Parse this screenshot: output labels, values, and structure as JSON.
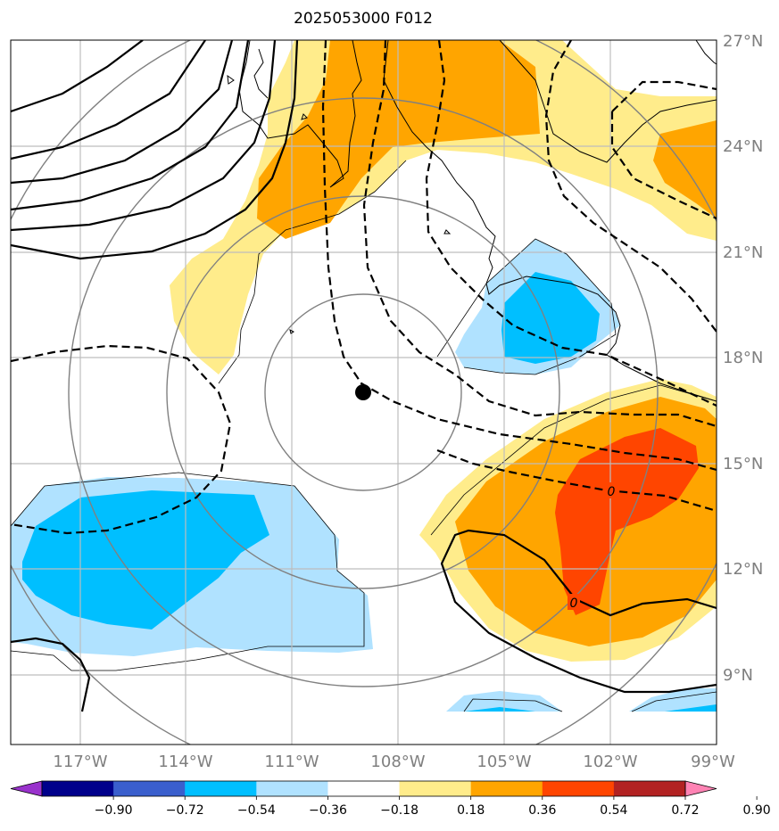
{
  "title": "2025053000 F012",
  "lon_labels": [
    "117°W",
    "114°W",
    "111°W",
    "108°W",
    "105°W",
    "102°W",
    "99°W"
  ],
  "lat_labels": [
    "27°N",
    "24°N",
    "21°N",
    "18°N",
    "15°N",
    "12°N",
    "9°N"
  ],
  "contour_labels": [
    "0",
    "0"
  ],
  "colorbar": {
    "ticks": [
      "−0.90",
      "−0.72",
      "−0.54",
      "−0.36",
      "−0.18",
      "0.18",
      "0.36",
      "0.54",
      "0.72",
      "0.90"
    ],
    "colors": [
      "#9932cc",
      "#00008b",
      "#3a5fcd",
      "#00bfff",
      "#b0e2ff",
      "#ffffff",
      "#ffec8b",
      "#ffa500",
      "#ff4500",
      "#b22222",
      "#ff83b4"
    ]
  },
  "fill_colors": {
    "light_blue": "#b0e2ff",
    "blue": "#00bfff",
    "light_yellow": "#ffec8b",
    "orange": "#ffa500",
    "red_orange": "#ff4500"
  },
  "storm_center_marker": "black-dot"
}
